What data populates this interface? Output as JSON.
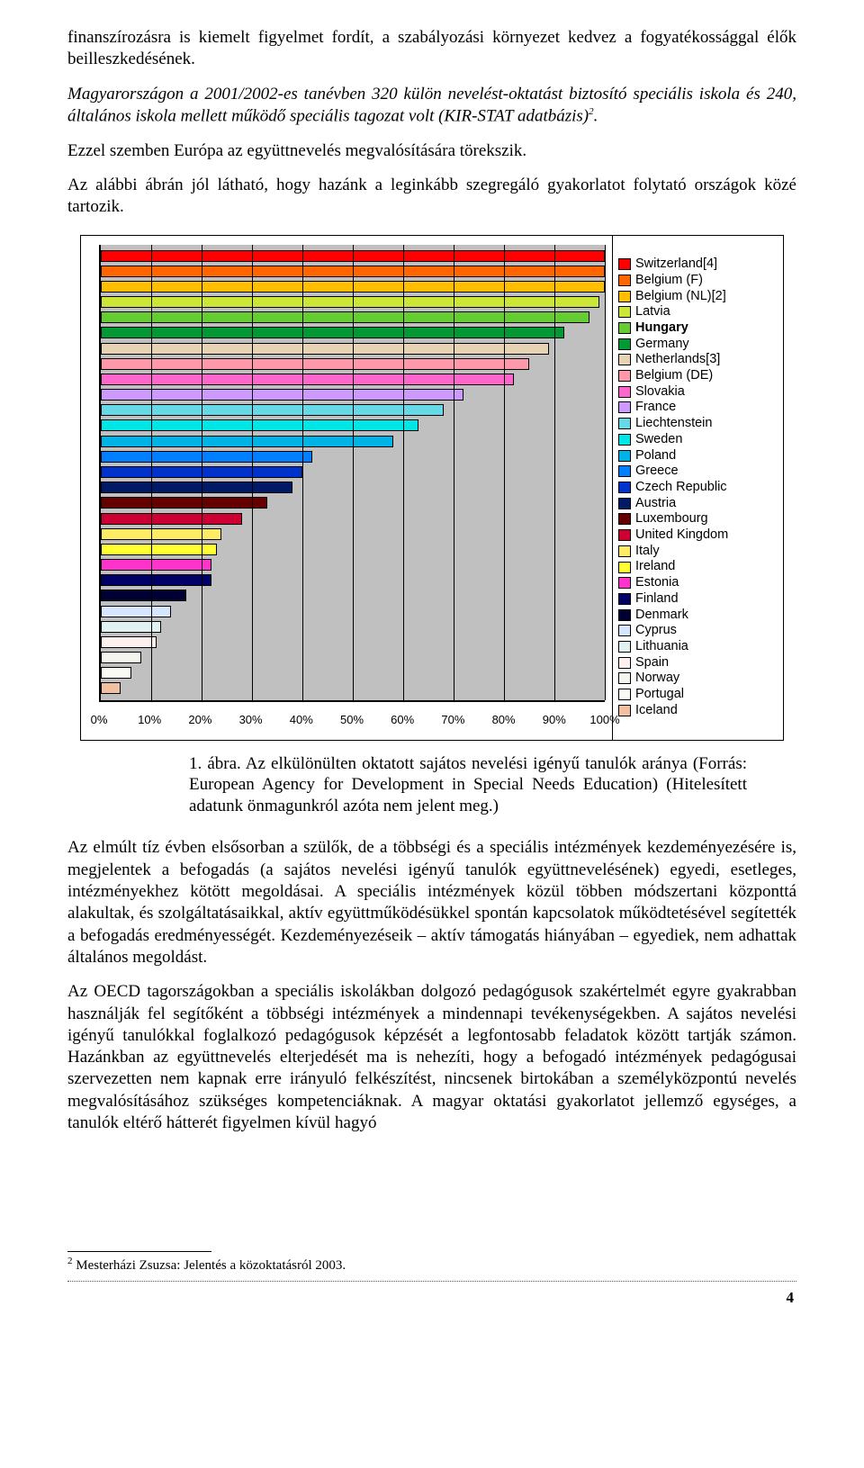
{
  "paragraphs": {
    "p1": "finanszírozásra is kiemelt figyelmet fordít, a szabályozási környezet kedvez a fogyatékossággal élők beilleszkedésének.",
    "p2_italic": "Magyarországon a 2001/2002-es tanévben 320 külön nevelést-oktatást biztosító speciális iskola és 240, általános iskola mellett működő speciális tagozat volt (KIR-STAT adatbázis)",
    "p2_sup": "2",
    "p2_end": ".",
    "p3": "Ezzel szemben Európa az együttnevelés megvalósítására törekszik.",
    "p4": "Az alábbi ábrán jól látható, hogy hazánk a leginkább szegregáló gyakorlatot folytató országok közé tartozik."
  },
  "chart": {
    "background_color": "#c0c0c0",
    "xticks": [
      "0%",
      "10%",
      "20%",
      "30%",
      "40%",
      "50%",
      "60%",
      "70%",
      "80%",
      "90%",
      "100%"
    ],
    "series": [
      {
        "label": "Switzerland[4]",
        "color": "#ff0000",
        "value": 100,
        "bold": false
      },
      {
        "label": "Belgium (F)",
        "color": "#ff6600",
        "value": 100,
        "bold": false
      },
      {
        "label": "Belgium (NL)[2]",
        "color": "#ffbf00",
        "value": 100,
        "bold": false
      },
      {
        "label": "Latvia",
        "color": "#cce637",
        "value": 99,
        "bold": false
      },
      {
        "label": "Hungary",
        "color": "#66cc33",
        "value": 97,
        "bold": true
      },
      {
        "label": "Germany",
        "color": "#009933",
        "value": 92,
        "bold": false
      },
      {
        "label": "Netherlands[3]",
        "color": "#e6d3b3",
        "value": 89,
        "bold": false
      },
      {
        "label": "Belgium (DE)",
        "color": "#ff99aa",
        "value": 85,
        "bold": false
      },
      {
        "label": "Slovakia",
        "color": "#ff66cc",
        "value": 82,
        "bold": false
      },
      {
        "label": "France",
        "color": "#cc99ff",
        "value": 72,
        "bold": false
      },
      {
        "label": "Liechtenstein",
        "color": "#66d9e6",
        "value": 68,
        "bold": false
      },
      {
        "label": "Sweden",
        "color": "#00e6e6",
        "value": 63,
        "bold": false
      },
      {
        "label": "Poland",
        "color": "#00b3e6",
        "value": 58,
        "bold": false
      },
      {
        "label": "Greece",
        "color": "#0080ff",
        "value": 42,
        "bold": false
      },
      {
        "label": "Czech Republic",
        "color": "#0033cc",
        "value": 40,
        "bold": false
      },
      {
        "label": "Austria",
        "color": "#001a66",
        "value": 38,
        "bold": false
      },
      {
        "label": "Luxembourg",
        "color": "#660000",
        "value": 33,
        "bold": false
      },
      {
        "label": "United Kingdom",
        "color": "#cc0033",
        "value": 28,
        "bold": false
      },
      {
        "label": "Italy",
        "color": "#ffeb66",
        "value": 24,
        "bold": false
      },
      {
        "label": "Ireland",
        "color": "#ffff33",
        "value": 23,
        "bold": false
      },
      {
        "label": "Estonia",
        "color": "#ff33cc",
        "value": 22,
        "bold": false
      },
      {
        "label": "Finland",
        "color": "#000066",
        "value": 22,
        "bold": false
      },
      {
        "label": "Denmark",
        "color": "#000033",
        "value": 17,
        "bold": false
      },
      {
        "label": "Cyprus",
        "color": "#d6e6ff",
        "value": 14,
        "bold": false
      },
      {
        "label": "Lithuania",
        "color": "#e0f2f2",
        "value": 12,
        "bold": false
      },
      {
        "label": "Spain",
        "color": "#fff0f0",
        "value": 11,
        "bold": false
      },
      {
        "label": "Norway",
        "color": "#f5f5f0",
        "value": 8,
        "bold": false
      },
      {
        "label": "Portugal",
        "color": "#fafaf5",
        "value": 6,
        "bold": false
      },
      {
        "label": "Iceland",
        "color": "#f0c0a0",
        "value": 4,
        "bold": false
      }
    ]
  },
  "caption": "1. ábra. Az elkülönülten oktatott sajátos nevelési igényű tanulók aránya (Forrás: European Agency for Development in Special Needs Education) (Hitelesített adatunk önmagunkról azóta nem jelent meg.)",
  "body2": {
    "p5": "Az elmúlt tíz évben elsősorban a szülők, de a többségi és a speciális intézmények kezdeményezésére is, megjelentek a befogadás (a sajátos nevelési igényű tanulók együttnevelésének) egyedi, esetleges, intézményekhez kötött megoldásai. A speciális intézmények közül többen módszertani központtá alakultak, és szolgáltatásaikkal, aktív együttműködésükkel spontán kapcsolatok működtetésével segítették a befogadás eredményességét. Kezdeményezéseik – aktív támogatás hiányában – egyediek, nem adhattak általános megoldást.",
    "p6": "Az OECD tagországokban a speciális iskolákban dolgozó pedagógusok szakértelmét egyre gyakrabban használják fel segítőként a többségi intézmények a mindennapi tevékenységekben. A sajátos nevelési igényű tanulókkal foglalkozó pedagógusok képzését a legfontosabb feladatok között tartják számon. Hazánkban az együttnevelés elterjedését ma is nehezíti, hogy a befogadó intézmények pedagógusai szervezetten nem kapnak erre irányuló felkészítést, nincsenek birtokában a személyközpontú nevelés megvalósításához szükséges kompetenciáknak. A magyar oktatási gyakorlatot jellemző egységes, a tanulók eltérő hátterét figyelmen kívül hagyó"
  },
  "footnote": {
    "num": "2",
    "text": " Mesterházi Zsuzsa: Jelentés a közoktatásról 2003."
  },
  "page_number": "4"
}
